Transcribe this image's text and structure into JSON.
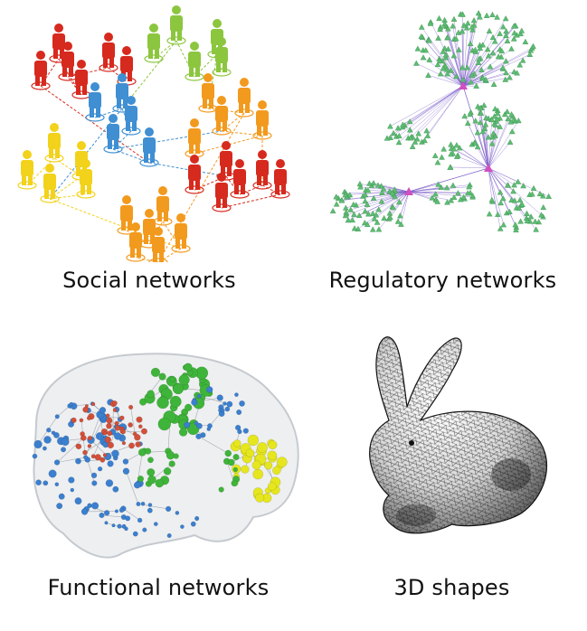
{
  "panels": [
    {
      "caption": "Social networks",
      "icon": "people-network-illustration"
    },
    {
      "caption": "Regulatory networks",
      "icon": "gene-regulatory-network-illustration"
    },
    {
      "caption": "Functional networks",
      "icon": "brain-network-illustration"
    },
    {
      "caption": "3D shapes",
      "icon": "bunny-mesh-illustration"
    }
  ],
  "colors": {
    "red": "#d62a1e",
    "green": "#8cc63f",
    "blue": "#3f8fd2",
    "orange": "#f29a1e",
    "yellow": "#f2d21b",
    "node_green": "#5dbd73",
    "hub": "#d24fc0",
    "edge_purple": "#7b5cc8",
    "brain_blue": "#3b7fcf",
    "brain_red": "#d2503a",
    "brain_green": "#3fb43a",
    "brain_yellow": "#e6e61e"
  }
}
